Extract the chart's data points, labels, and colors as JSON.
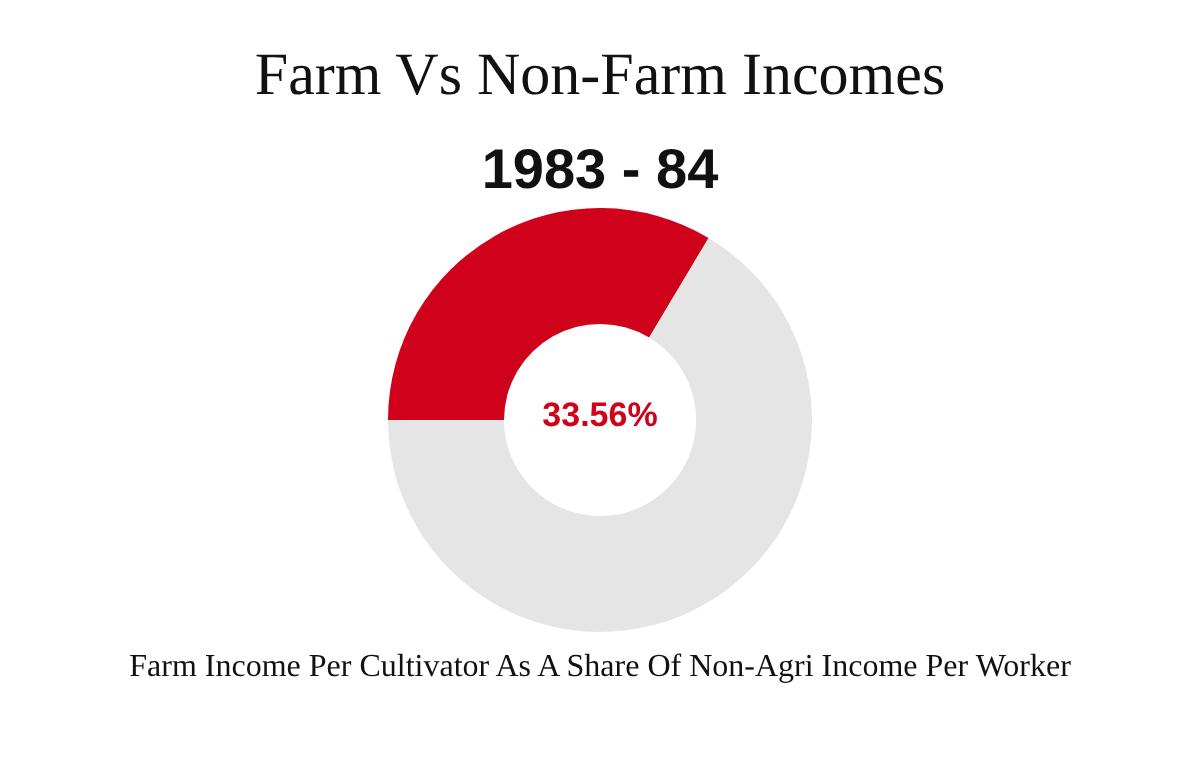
{
  "chart_data": {
    "type": "donut",
    "title": "Farm Vs Non-Farm Incomes",
    "subtitle": "1983 - 84",
    "categories": [
      null,
      null
    ],
    "values": [
      33.56,
      66.44
    ],
    "colors": [
      "#d0021b",
      "#e5e5e5"
    ],
    "value_labels": [
      "33.56%",
      null
    ],
    "annotations": [
      "Farm Income Per Cultivator As A Share Of Non-Agri Income Per Worker"
    ]
  }
}
